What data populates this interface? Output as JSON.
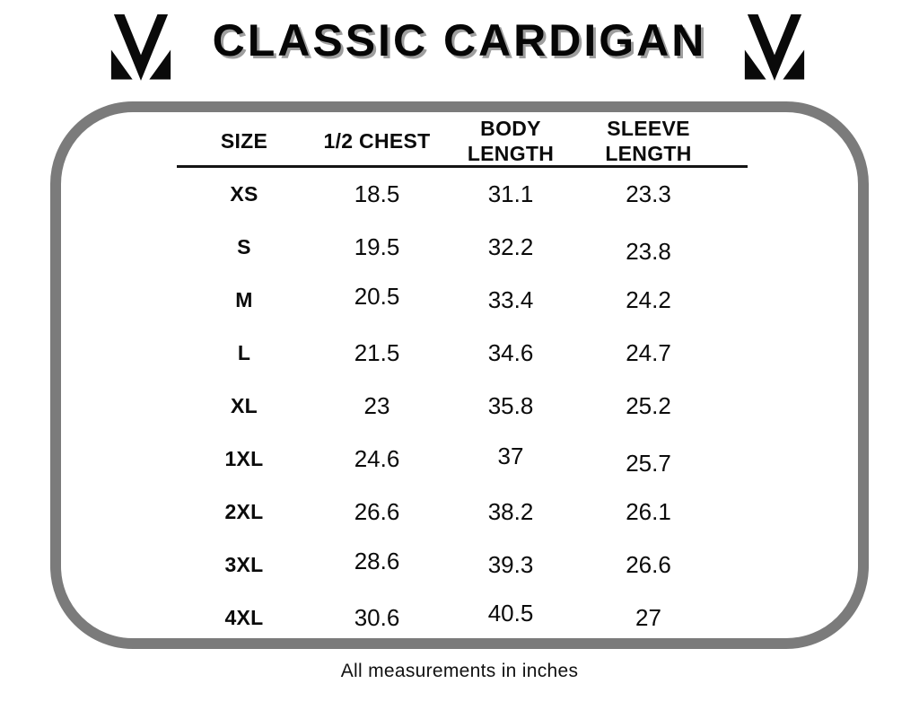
{
  "header": {
    "title": "CLASSIC CARDIGAN"
  },
  "footer": {
    "note": "All measurements in inches"
  },
  "colors": {
    "background": "#ffffff",
    "text": "#0b0b0b",
    "title_shadow": "#9e9e9e",
    "panel_border": "#7b7b7b",
    "header_rule": "#141414"
  },
  "icons": {
    "logo_left": "brand-m-logo-icon",
    "logo_right": "brand-m-logo-icon"
  },
  "chart_data": {
    "type": "table",
    "title": "CLASSIC CARDIGAN",
    "columns": [
      "SIZE",
      "1/2 CHEST",
      "BODY LENGTH",
      "SLEEVE LENGTH"
    ],
    "rows": [
      [
        "XS",
        18.5,
        31.1,
        23.3
      ],
      [
        "S",
        19.5,
        32.2,
        23.8
      ],
      [
        "M",
        20.5,
        33.4,
        24.2
      ],
      [
        "L",
        21.5,
        34.6,
        24.7
      ],
      [
        "XL",
        23,
        35.8,
        25.2
      ],
      [
        "1XL",
        24.6,
        37,
        25.7
      ],
      [
        "2XL",
        26.6,
        38.2,
        26.1
      ],
      [
        "3XL",
        28.6,
        39.3,
        26.6
      ],
      [
        "4XL",
        30.6,
        40.5,
        27
      ]
    ],
    "note": "All measurements in inches",
    "layout": {
      "grid": false,
      "legend": "none"
    }
  }
}
